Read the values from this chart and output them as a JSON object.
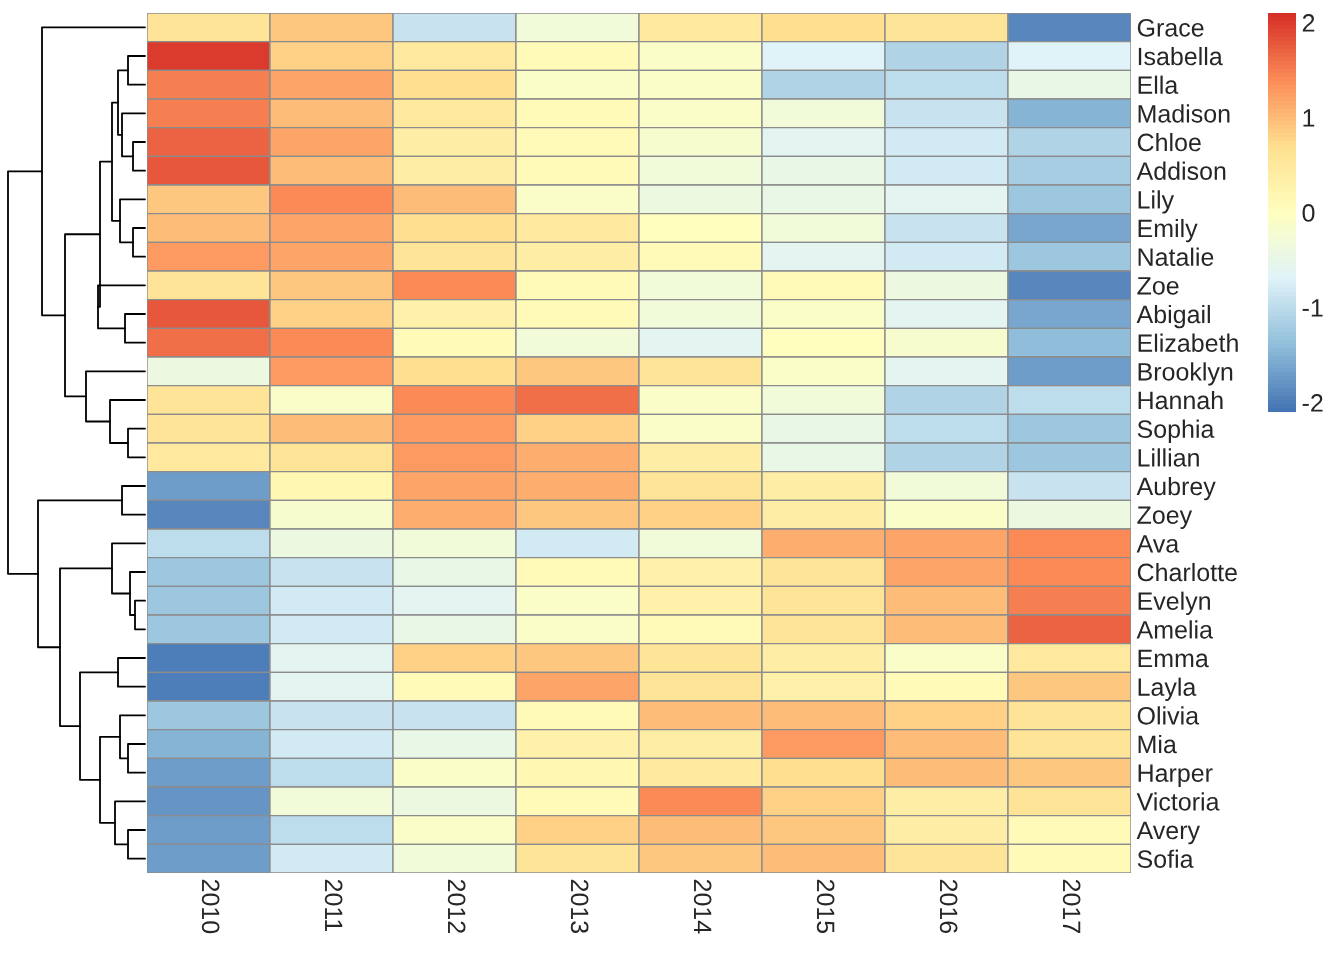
{
  "chart_data": {
    "type": "heatmap",
    "categories": [
      "2010",
      "2011",
      "2012",
      "2013",
      "2014",
      "2015",
      "2016",
      "2017"
    ],
    "y_categories": [
      "Grace",
      "Isabella",
      "Ella",
      "Madison",
      "Chloe",
      "Addison",
      "Lily",
      "Emily",
      "Natalie",
      "Zoe",
      "Abigail",
      "Elizabeth",
      "Brooklyn",
      "Hannah",
      "Sophia",
      "Lillian",
      "Aubrey",
      "Zoey",
      "Ava",
      "Charlotte",
      "Evelyn",
      "Amelia",
      "Emma",
      "Layla",
      "Olivia",
      "Mia",
      "Harper",
      "Victoria",
      "Avery",
      "Sofia"
    ],
    "cells": [
      [
        0.6,
        0.9,
        -0.9,
        -0.3,
        0.5,
        0.7,
        0.6,
        -1.9
      ],
      [
        2.0,
        0.8,
        0.5,
        0.1,
        -0.1,
        -0.7,
        -1.1,
        -0.7
      ],
      [
        1.5,
        1.2,
        0.7,
        -0.1,
        -0.1,
        -1.1,
        -1.0,
        -0.5
      ],
      [
        1.5,
        1.0,
        0.5,
        0.1,
        -0.1,
        -0.3,
        -0.9,
        -1.5
      ],
      [
        1.7,
        1.2,
        0.4,
        0.1,
        -0.2,
        -0.6,
        -0.8,
        -1.1
      ],
      [
        1.8,
        1.0,
        0.4,
        0.1,
        -0.3,
        -0.5,
        -0.8,
        -1.2
      ],
      [
        0.9,
        1.4,
        1.0,
        -0.1,
        -0.4,
        -0.5,
        -0.6,
        -1.3
      ],
      [
        1.0,
        1.2,
        0.7,
        0.5,
        0.0,
        -0.3,
        -0.9,
        -1.6
      ],
      [
        1.3,
        1.2,
        0.6,
        0.4,
        0.1,
        -0.6,
        -0.8,
        -1.3
      ],
      [
        0.6,
        0.9,
        1.4,
        0.1,
        -0.3,
        0.1,
        -0.4,
        -1.9
      ],
      [
        1.8,
        0.8,
        0.3,
        0.1,
        -0.3,
        -0.1,
        -0.6,
        -1.6
      ],
      [
        1.6,
        1.4,
        0.1,
        -0.3,
        -0.6,
        0.0,
        -0.2,
        -1.4
      ],
      [
        -0.4,
        1.3,
        0.7,
        0.9,
        0.6,
        -0.1,
        -0.6,
        -1.7
      ],
      [
        0.6,
        -0.1,
        1.4,
        1.6,
        -0.1,
        -0.3,
        -1.1,
        -1.0
      ],
      [
        0.6,
        1.0,
        1.3,
        0.8,
        -0.1,
        -0.5,
        -1.0,
        -1.3
      ],
      [
        0.5,
        0.6,
        1.3,
        1.1,
        0.4,
        -0.5,
        -1.1,
        -1.3
      ],
      [
        -1.7,
        0.2,
        1.2,
        1.1,
        0.6,
        0.4,
        -0.3,
        -0.9
      ],
      [
        -1.9,
        -0.2,
        1.1,
        0.9,
        0.8,
        0.4,
        -0.1,
        -0.4
      ],
      [
        -1.0,
        -0.4,
        -0.3,
        -0.8,
        -0.3,
        1.1,
        1.2,
        1.4
      ],
      [
        -1.3,
        -0.9,
        -0.5,
        0.1,
        0.3,
        0.6,
        1.2,
        1.4
      ],
      [
        -1.3,
        -0.8,
        -0.6,
        -0.1,
        0.3,
        0.6,
        1.0,
        1.5
      ],
      [
        -1.3,
        -0.8,
        -0.5,
        -0.1,
        0.1,
        0.6,
        1.0,
        1.7
      ],
      [
        -2.0,
        -0.6,
        0.8,
        0.9,
        0.6,
        0.4,
        -0.1,
        0.5
      ],
      [
        -2.0,
        -0.6,
        0.1,
        1.2,
        0.6,
        0.3,
        0.1,
        0.9
      ],
      [
        -1.3,
        -0.9,
        -0.9,
        0.1,
        1.0,
        1.0,
        0.8,
        0.6
      ],
      [
        -1.5,
        -0.8,
        -0.5,
        0.3,
        0.4,
        1.3,
        1.0,
        0.6
      ],
      [
        -1.7,
        -1.0,
        -0.1,
        0.2,
        0.5,
        0.7,
        1.0,
        0.9
      ],
      [
        -1.8,
        -0.3,
        -0.4,
        0.1,
        1.4,
        0.8,
        0.4,
        0.6
      ],
      [
        -1.7,
        -1.0,
        -0.1,
        0.8,
        1.0,
        0.9,
        0.4,
        0.1
      ],
      [
        -1.7,
        -0.8,
        -0.3,
        0.6,
        0.9,
        1.0,
        0.6,
        0.1
      ]
    ],
    "clim": [
      -2.1,
      2.1
    ],
    "cticks": [
      -2,
      -1,
      0,
      1,
      2
    ]
  }
}
